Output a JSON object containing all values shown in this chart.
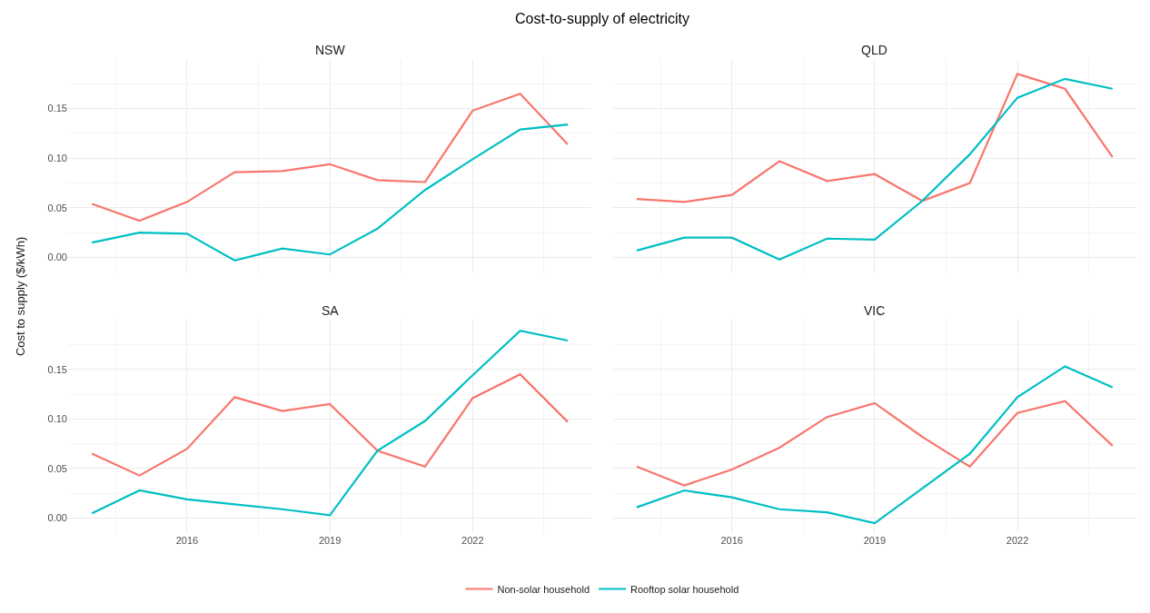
{
  "chart_data": [
    {
      "type": "line",
      "title": "NSW",
      "annotations": [
        "Cost-to-supply of electricity"
      ],
      "ylabel": "Cost to supply ($/kWh)",
      "x": [
        2014,
        2015,
        2016,
        2017,
        2018,
        2019,
        2020,
        2021,
        2022,
        2023,
        2024
      ],
      "xlim": [
        2013.5,
        2024.5
      ],
      "xticks": [
        2016,
        2019,
        2022
      ],
      "ylim": [
        -0.015,
        0.2
      ],
      "yticks": [
        {
          "value": 0,
          "label": "0.00"
        },
        {
          "value": 0.05,
          "label": "0.05"
        },
        {
          "value": 0.1,
          "label": "0.10"
        },
        {
          "value": 0.15,
          "label": "0.15"
        }
      ],
      "grid": true,
      "legend": "bottom",
      "tick_labels": "y",
      "marker": "none",
      "line_style": "solid",
      "series": [
        {
          "name": "Non-solar household",
          "color": "#f8766d",
          "values": [
            0.054,
            0.037,
            0.056,
            0.086,
            0.087,
            0.094,
            0.078,
            0.076,
            0.148,
            0.165,
            0.114
          ]
        },
        {
          "name": "Rooftop solar household",
          "color": "#00bfc4",
          "values": [
            0.015,
            0.025,
            0.024,
            -0.003,
            0.009,
            0.003,
            0.029,
            0.068,
            0.099,
            0.129,
            0.134
          ]
        }
      ]
    },
    {
      "type": "line",
      "title": "QLD",
      "x": [
        2014,
        2015,
        2016,
        2017,
        2018,
        2019,
        2020,
        2021,
        2022,
        2023,
        2024
      ],
      "xlim": [
        2013.5,
        2024.5
      ],
      "xticks": [
        2016,
        2019,
        2022
      ],
      "ylim": [
        -0.015,
        0.2
      ],
      "yticks": [
        {
          "value": 0,
          "label": "0.00"
        },
        {
          "value": 0.05,
          "label": "0.05"
        },
        {
          "value": 0.1,
          "label": "0.10"
        },
        {
          "value": 0.15,
          "label": "0.15"
        }
      ],
      "grid": true,
      "tick_labels": false,
      "marker": "none",
      "line_style": "solid",
      "series": [
        {
          "name": "Non-solar household",
          "color": "#f8766d",
          "values": [
            0.059,
            0.056,
            0.063,
            0.097,
            0.077,
            0.084,
            0.057,
            0.075,
            0.185,
            0.17,
            0.101
          ]
        },
        {
          "name": "Rooftop solar household",
          "color": "#00bfc4",
          "values": [
            0.007,
            0.02,
            0.02,
            -0.002,
            0.019,
            0.018,
            0.057,
            0.104,
            0.161,
            0.18,
            0.17
          ]
        }
      ]
    },
    {
      "type": "line",
      "title": "SA",
      "x": [
        2014,
        2015,
        2016,
        2017,
        2018,
        2019,
        2020,
        2021,
        2022,
        2023,
        2024
      ],
      "xlim": [
        2013.5,
        2024.5
      ],
      "xticks": [
        2016,
        2019,
        2022
      ],
      "ylim": [
        -0.015,
        0.2
      ],
      "yticks": [
        {
          "value": 0,
          "label": "0.00"
        },
        {
          "value": 0.05,
          "label": "0.05"
        },
        {
          "value": 0.1,
          "label": "0.10"
        },
        {
          "value": 0.15,
          "label": "0.15"
        }
      ],
      "grid": true,
      "marker": "none",
      "line_style": "solid",
      "series": [
        {
          "name": "Non-solar household",
          "color": "#f8766d",
          "values": [
            0.065,
            0.043,
            0.07,
            0.122,
            0.108,
            0.115,
            0.068,
            0.052,
            0.121,
            0.145,
            0.097
          ]
        },
        {
          "name": "Rooftop solar household",
          "color": "#00bfc4",
          "values": [
            0.005,
            0.028,
            0.019,
            0.014,
            0.009,
            0.003,
            0.068,
            0.098,
            0.144,
            0.189,
            0.179
          ]
        }
      ]
    },
    {
      "type": "line",
      "title": "VIC",
      "x": [
        2014,
        2015,
        2016,
        2017,
        2018,
        2019,
        2020,
        2021,
        2022,
        2023,
        2024
      ],
      "xlim": [
        2013.5,
        2024.5
      ],
      "xticks": [
        2016,
        2019,
        2022
      ],
      "ylim": [
        -0.015,
        0.2
      ],
      "yticks": [
        {
          "value": 0,
          "label": "0.00"
        },
        {
          "value": 0.05,
          "label": "0.05"
        },
        {
          "value": 0.1,
          "label": "0.10"
        },
        {
          "value": 0.15,
          "label": "0.15"
        }
      ],
      "grid": true,
      "tick_labels": "x",
      "marker": "none",
      "line_style": "solid",
      "series": [
        {
          "name": "Non-solar household",
          "color": "#f8766d",
          "values": [
            0.052,
            0.033,
            0.049,
            0.071,
            0.102,
            0.116,
            0.082,
            0.052,
            0.106,
            0.118,
            0.073
          ]
        },
        {
          "name": "Rooftop solar household",
          "color": "#00bfc4",
          "values": [
            0.011,
            0.028,
            0.021,
            0.009,
            0.006,
            -0.005,
            0.03,
            0.065,
            0.122,
            0.153,
            0.132
          ]
        }
      ]
    }
  ]
}
